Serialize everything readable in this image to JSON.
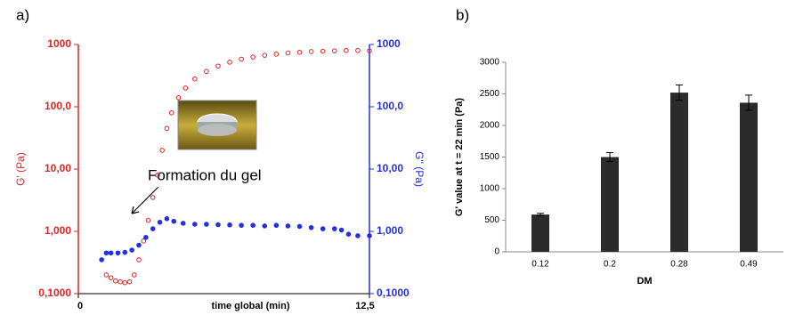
{
  "chart_data": [
    {
      "type": "scatter",
      "panel": "a)",
      "log_y": true,
      "xlabel": "time global (min)",
      "ylabel": "G' (Pa)",
      "y2label": "G'' (Pa)",
      "annotation": "Formation du gel",
      "xlim": [
        0,
        12.5
      ],
      "xticks": [
        0,
        {
          "value": 12.5,
          "label": "12,5"
        }
      ],
      "ylim": [
        0.1,
        1000
      ],
      "yticks": [
        {
          "value": 0.1,
          "label": "0,1000"
        },
        {
          "value": 1,
          "label": "1,000"
        },
        {
          "value": 10,
          "label": "10,00"
        },
        {
          "value": 100,
          "label": "100,0"
        },
        1000
      ],
      "y2lim": [
        0.1,
        1000
      ],
      "y2ticks": [
        {
          "value": 0.1,
          "label": "0,1000"
        },
        {
          "value": 1,
          "label": "1,000"
        },
        {
          "value": 10,
          "label": "10,00"
        },
        {
          "value": 100,
          "label": "100,0"
        },
        1000
      ],
      "series": [
        {
          "color": "#e02424",
          "x": [
            1.2,
            1.4,
            1.6,
            1.8,
            2.0,
            2.2,
            2.4,
            2.6,
            2.8,
            3.0,
            3.2,
            3.4,
            3.6,
            3.8,
            4.0,
            4.3,
            4.6,
            5.0,
            5.5,
            6,
            6.5,
            7,
            7.5,
            8,
            8.5,
            9,
            9.5,
            10,
            10.5,
            11,
            11.5,
            12,
            12.5
          ],
          "values": [
            0.2,
            0.18,
            0.16,
            0.155,
            0.15,
            0.155,
            0.2,
            0.35,
            0.7,
            1.5,
            3.5,
            8,
            20,
            45,
            80,
            140,
            200,
            280,
            370,
            450,
            520,
            580,
            630,
            670,
            700,
            730,
            750,
            770,
            780,
            790,
            800,
            800,
            790
          ]
        },
        {
          "color": "#2430e0",
          "axis": "y2",
          "x": [
            1.0,
            1.2,
            1.4,
            1.7,
            2.0,
            2.3,
            2.6,
            2.9,
            3.2,
            3.5,
            3.8,
            4.1,
            4.5,
            5,
            5.5,
            6,
            6.5,
            7,
            7.5,
            8,
            8.5,
            9,
            9.5,
            10,
            10.5,
            11,
            11.3,
            11.6,
            12,
            12.5
          ],
          "values": [
            0.35,
            0.45,
            0.45,
            0.45,
            0.46,
            0.5,
            0.6,
            0.8,
            1.1,
            1.4,
            1.6,
            1.45,
            1.35,
            1.3,
            1.3,
            1.28,
            1.27,
            1.25,
            1.25,
            1.22,
            1.25,
            1.22,
            1.2,
            1.15,
            1.1,
            1.1,
            1.05,
            0.9,
            0.85,
            0.85
          ]
        }
      ]
    },
    {
      "type": "bar",
      "panel": "b)",
      "xlabel": "DM",
      "ylabel": "G' value at t = 22 min (Pa)",
      "categories": [
        "0.12",
        "0.2",
        "0.28",
        "0.49"
      ],
      "values": [
        590,
        1500,
        2520,
        2360
      ],
      "errors": [
        20,
        70,
        120,
        120
      ],
      "color": "#2b2b2b",
      "ylim": [
        0,
        3000
      ],
      "yticks": [
        0,
        500,
        1000,
        1500,
        2000,
        2500,
        3000
      ]
    }
  ]
}
